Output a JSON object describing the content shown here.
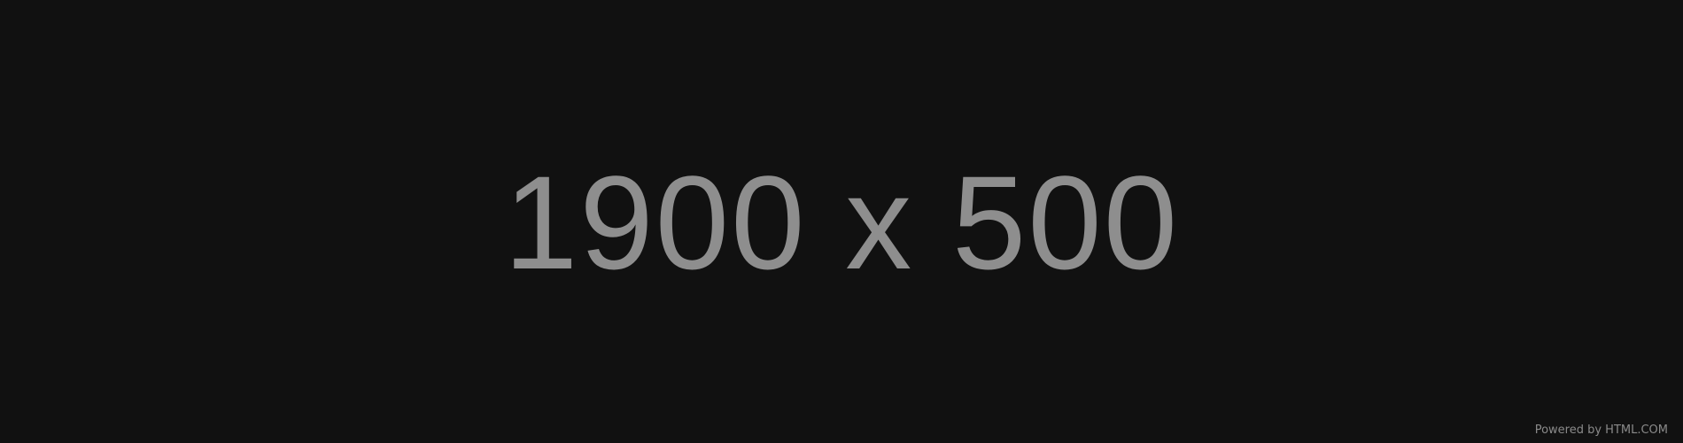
{
  "placeholder": {
    "dimensions_text": "1900 x 500",
    "powered_by_text": "Powered by HTML.COM"
  },
  "colors": {
    "background": "#111111",
    "text": "#8e8e8e"
  }
}
